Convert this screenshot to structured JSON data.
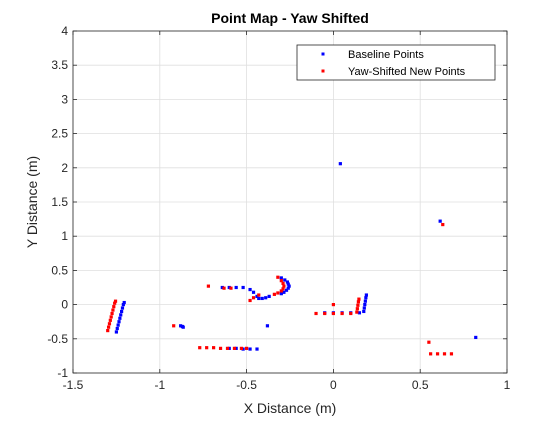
{
  "chart_data": {
    "type": "scatter",
    "title": "Point Map - Yaw Shifted",
    "xlabel": "X Distance (m)",
    "ylabel": "Y Distance (m)",
    "xlim": [
      -1.5,
      1
    ],
    "ylim": [
      -1,
      4
    ],
    "x_ticks": [
      -1.5,
      -1,
      -0.5,
      0,
      0.5,
      1
    ],
    "x_tick_labels": [
      "-1.5",
      "-1",
      "-0.5",
      "0",
      "0.5",
      "1"
    ],
    "y_ticks": [
      -1,
      -0.5,
      0,
      0.5,
      1,
      1.5,
      2,
      2.5,
      3,
      3.5,
      4
    ],
    "y_tick_labels": [
      "-1",
      "-0.5",
      "0",
      "0.5",
      "1",
      "1.5",
      "2",
      "2.5",
      "3",
      "3.5",
      "4"
    ],
    "grid": true,
    "legend_position": "top-right",
    "series": [
      {
        "name": "Baseline Points",
        "color": "#0000ff",
        "points": [
          [
            -1.25,
            -0.4
          ],
          [
            -1.245,
            -0.35
          ],
          [
            -1.24,
            -0.3
          ],
          [
            -1.235,
            -0.25
          ],
          [
            -1.23,
            -0.2
          ],
          [
            -1.225,
            -0.15
          ],
          [
            -1.22,
            -0.1
          ],
          [
            -1.215,
            -0.05
          ],
          [
            -1.21,
            0.0
          ],
          [
            -1.205,
            0.03
          ],
          [
            -0.88,
            -0.31
          ],
          [
            -0.87,
            -0.32
          ],
          [
            -0.865,
            -0.33
          ],
          [
            -0.64,
            0.25
          ],
          [
            -0.6,
            0.25
          ],
          [
            -0.56,
            0.25
          ],
          [
            -0.52,
            0.25
          ],
          [
            -0.48,
            0.22
          ],
          [
            -0.46,
            0.18
          ],
          [
            -0.44,
            0.12
          ],
          [
            -0.43,
            0.09
          ],
          [
            -0.41,
            0.09
          ],
          [
            -0.39,
            0.1
          ],
          [
            -0.37,
            0.12
          ],
          [
            -0.38,
            -0.31
          ],
          [
            -0.3,
            0.39
          ],
          [
            -0.28,
            0.36
          ],
          [
            -0.265,
            0.33
          ],
          [
            -0.26,
            0.3
          ],
          [
            -0.255,
            0.27
          ],
          [
            -0.26,
            0.24
          ],
          [
            -0.27,
            0.21
          ],
          [
            -0.285,
            0.18
          ],
          [
            -0.3,
            0.16
          ],
          [
            -0.6,
            -0.64
          ],
          [
            -0.56,
            -0.64
          ],
          [
            -0.52,
            -0.65
          ],
          [
            -0.48,
            -0.65
          ],
          [
            -0.44,
            -0.65
          ],
          [
            -0.05,
            -0.12
          ],
          [
            0.0,
            -0.12
          ],
          [
            0.05,
            -0.12
          ],
          [
            0.1,
            -0.12
          ],
          [
            0.15,
            -0.12
          ],
          [
            0.175,
            -0.1
          ],
          [
            0.178,
            -0.05
          ],
          [
            0.181,
            0.0
          ],
          [
            0.184,
            0.05
          ],
          [
            0.187,
            0.1
          ],
          [
            0.19,
            0.14
          ],
          [
            0.04,
            2.06
          ],
          [
            0.615,
            1.22
          ],
          [
            0.82,
            -0.48
          ]
        ]
      },
      {
        "name": "Yaw-Shifted New Points",
        "color": "#ff0000",
        "points": [
          [
            -1.3,
            -0.38
          ],
          [
            -1.295,
            -0.33
          ],
          [
            -1.29,
            -0.28
          ],
          [
            -1.285,
            -0.23
          ],
          [
            -1.28,
            -0.18
          ],
          [
            -1.275,
            -0.13
          ],
          [
            -1.27,
            -0.08
          ],
          [
            -1.265,
            -0.03
          ],
          [
            -1.26,
            0.02
          ],
          [
            -1.255,
            0.05
          ],
          [
            -0.92,
            -0.31
          ],
          [
            -0.77,
            -0.63
          ],
          [
            -0.73,
            -0.63
          ],
          [
            -0.69,
            -0.63
          ],
          [
            -0.65,
            -0.64
          ],
          [
            -0.61,
            -0.64
          ],
          [
            -0.57,
            -0.64
          ],
          [
            -0.53,
            -0.64
          ],
          [
            -0.5,
            -0.64
          ],
          [
            -0.72,
            0.27
          ],
          [
            -0.63,
            0.24
          ],
          [
            -0.59,
            0.24
          ],
          [
            -0.48,
            0.06
          ],
          [
            -0.46,
            0.1
          ],
          [
            -0.43,
            0.14
          ],
          [
            -0.32,
            0.4
          ],
          [
            -0.3,
            0.35
          ],
          [
            -0.29,
            0.31
          ],
          [
            -0.285,
            0.27
          ],
          [
            -0.29,
            0.23
          ],
          [
            -0.3,
            0.2
          ],
          [
            -0.32,
            0.17
          ],
          [
            -0.34,
            0.15
          ],
          [
            -0.1,
            -0.13
          ],
          [
            -0.05,
            -0.13
          ],
          [
            0.0,
            -0.13
          ],
          [
            0.05,
            -0.13
          ],
          [
            0.1,
            -0.13
          ],
          [
            0.135,
            -0.11
          ],
          [
            0.138,
            -0.06
          ],
          [
            0.141,
            -0.01
          ],
          [
            0.144,
            0.04
          ],
          [
            0.147,
            0.08
          ],
          [
            0.0,
            0.0
          ],
          [
            0.63,
            1.17
          ],
          [
            0.55,
            -0.55
          ],
          [
            0.56,
            -0.72
          ],
          [
            0.6,
            -0.72
          ],
          [
            0.64,
            -0.72
          ],
          [
            0.68,
            -0.72
          ]
        ]
      }
    ]
  }
}
